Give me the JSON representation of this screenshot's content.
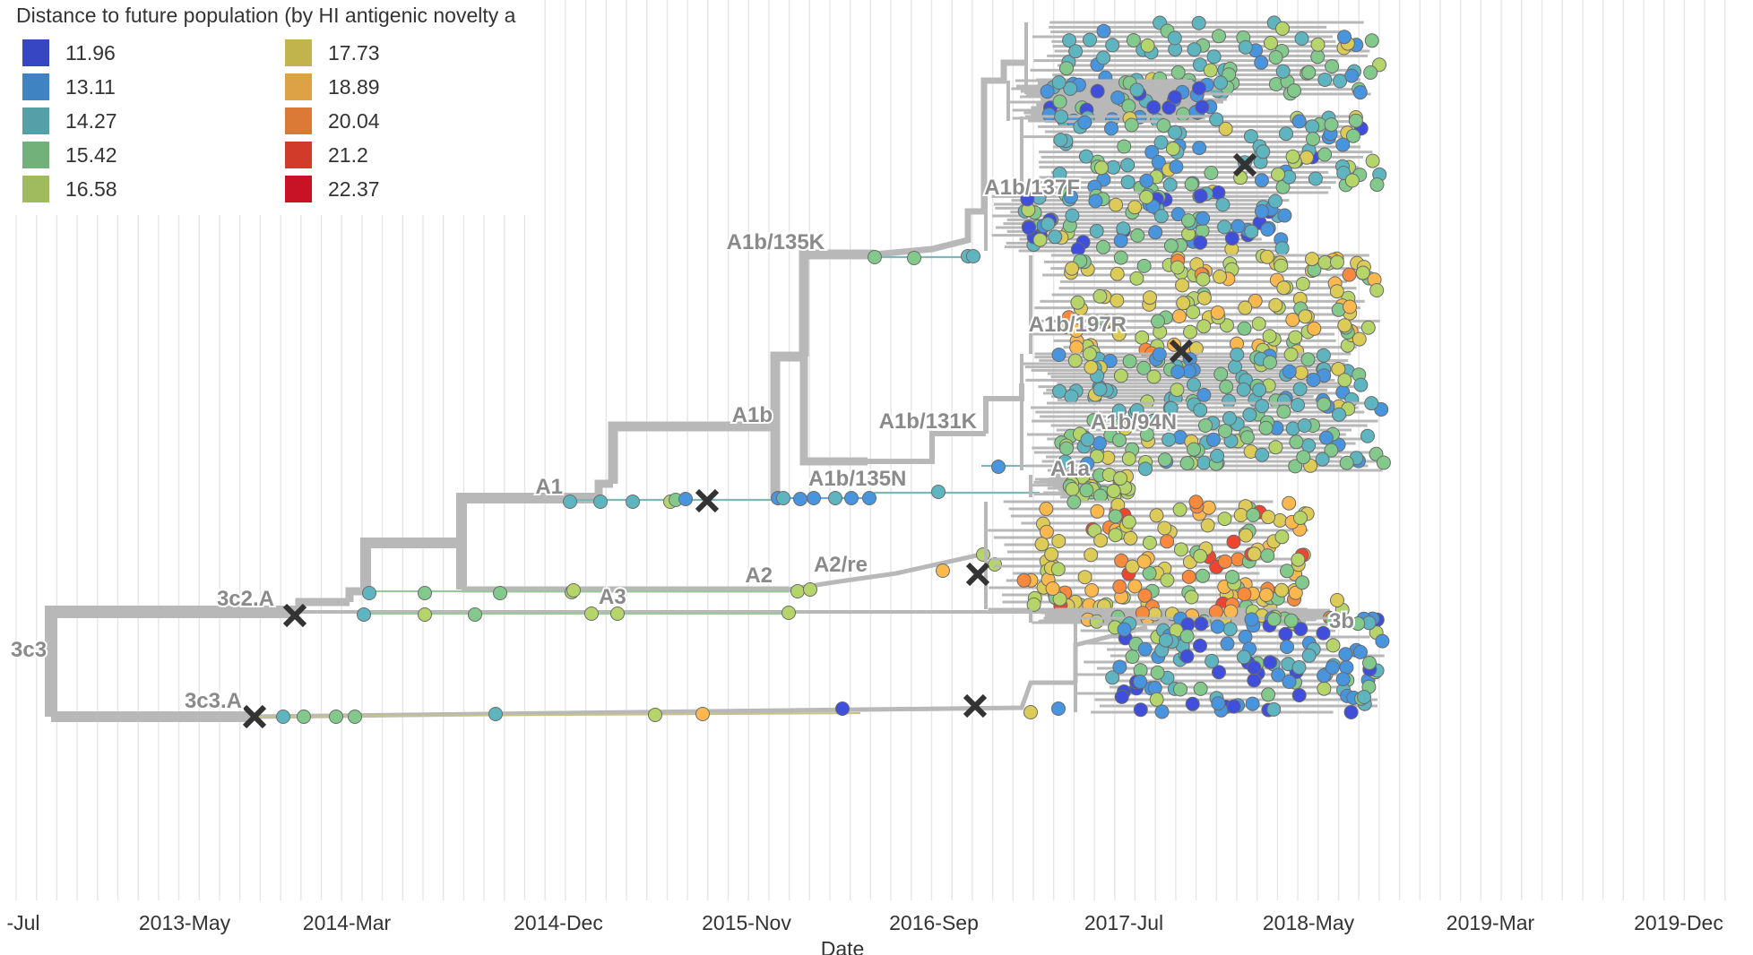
{
  "chart_data": {
    "type": "phylogenetic-tree",
    "legend": {
      "title": "Distance to future population (by HI antigenic novelty a",
      "entries": [
        {
          "label": "11.96",
          "color": "#3f4fdc"
        },
        {
          "label": "13.11",
          "color": "#4895de"
        },
        {
          "label": "14.27",
          "color": "#5fb5bf"
        },
        {
          "label": "15.42",
          "color": "#83c98b"
        },
        {
          "label": "16.58",
          "color": "#b5d56b"
        },
        {
          "label": "17.73",
          "color": "#dccc57"
        },
        {
          "label": "18.89",
          "color": "#fbb84f"
        },
        {
          "label": "20.04",
          "color": "#f98a3d"
        },
        {
          "label": "21.2",
          "color": "#ee4430"
        },
        {
          "label": "22.37",
          "color": "#e2162a"
        }
      ]
    },
    "xlabel": "Date",
    "x_ticks": [
      "-Jul",
      "2013-May",
      "2014-Mar",
      "2014-Dec",
      "2015-Nov",
      "2016-Sep",
      "2017-Jul",
      "2018-May",
      "2019-Mar",
      "2019-Dec"
    ],
    "clade_labels": [
      "3c3",
      "3c2.A",
      "3c3.A",
      "A1",
      "A1b",
      "A2",
      "A3",
      "A2/re",
      "A1b/135N",
      "A1a",
      "A1b/131K",
      "A1b/94N",
      "A1b/197R",
      "A1b/135K",
      "A1b/137F",
      "3b"
    ]
  }
}
